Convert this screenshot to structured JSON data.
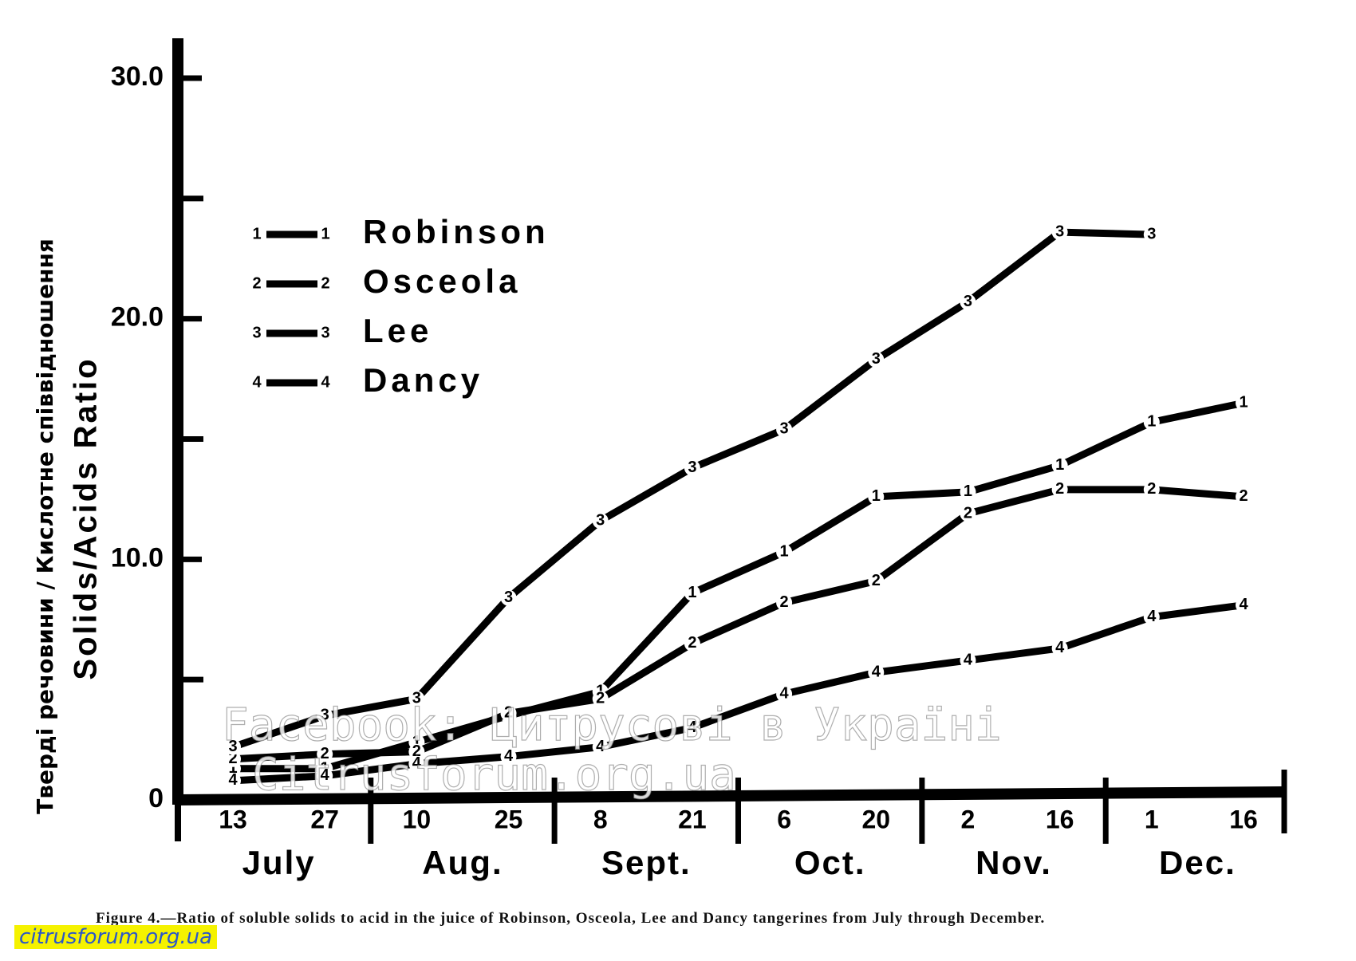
{
  "chart_data": {
    "type": "line",
    "y_label": "Solids/Acids Ratio",
    "y_label_overlay": "Тверді речовини / Кислотне співвідношення",
    "categories": [
      "13",
      "27",
      "10",
      "25",
      "8",
      "21",
      "6",
      "20",
      "2",
      "16",
      "1",
      "16"
    ],
    "months": [
      "July",
      "Aug.",
      "Sept.",
      "Oct.",
      "Nov.",
      "Dec."
    ],
    "ylim": [
      0,
      30
    ],
    "yticks": [
      0,
      {
        "value": 10,
        "label": "10.0"
      },
      {
        "value": 20,
        "label": "20.0"
      },
      {
        "value": 30,
        "label": "30.0"
      }
    ],
    "minor_yticks": [
      5,
      15,
      25
    ],
    "color": "#000000",
    "series": [
      {
        "name": "Robinson",
        "marker": "1",
        "values": [
          1.3,
          1.3,
          2.4,
          3.5,
          4.5,
          8.6,
          10.3,
          12.6,
          12.8,
          13.9,
          15.7,
          16.5
        ]
      },
      {
        "name": "Osceola",
        "marker": "2",
        "values": [
          1.7,
          1.9,
          2.0,
          3.6,
          4.2,
          6.5,
          8.2,
          9.1,
          11.9,
          12.9,
          12.9,
          12.6
        ]
      },
      {
        "name": "Lee",
        "marker": "3",
        "values": [
          2.2,
          3.5,
          4.2,
          8.4,
          11.6,
          13.8,
          15.4,
          18.3,
          20.7,
          23.6,
          23.5,
          null
        ]
      },
      {
        "name": "Dancy",
        "marker": "4",
        "values": [
          0.8,
          1.0,
          1.5,
          1.8,
          2.2,
          3.0,
          4.4,
          5.3,
          5.8,
          6.3,
          7.6,
          8.1
        ]
      }
    ],
    "caption": "Figure 4.—Ratio of soluble solids to acid in the juice of Robinson, Osceola, Lee and Dancy tangerines from July through December.",
    "watermarks": [
      "Facebook: Цитрусові в Україні",
      "Citrusforum.org.ua",
      "citrusforum.org.ua"
    ]
  }
}
